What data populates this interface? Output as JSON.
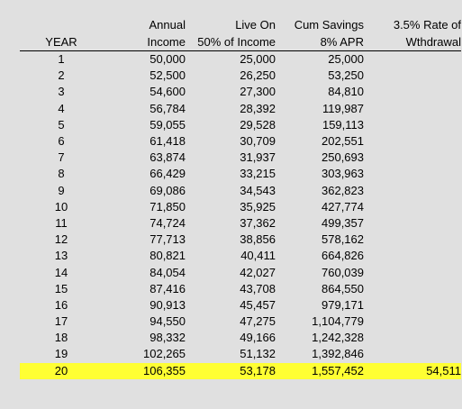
{
  "headers": {
    "year": "YEAR",
    "income_line1": "Annual",
    "income_line2": "Income",
    "live_line1": "Live On",
    "live_line2": "50% of Income",
    "cum_line1": "Cum Savings",
    "cum_line2": "8% APR",
    "wd_line1": "3.5% Rate of",
    "wd_line2": "Wthdrawal"
  },
  "rows": [
    {
      "year": "1",
      "income": "50,000",
      "live": "25,000",
      "cum": "25,000",
      "wd": ""
    },
    {
      "year": "2",
      "income": "52,500",
      "live": "26,250",
      "cum": "53,250",
      "wd": ""
    },
    {
      "year": "3",
      "income": "54,600",
      "live": "27,300",
      "cum": "84,810",
      "wd": ""
    },
    {
      "year": "4",
      "income": "56,784",
      "live": "28,392",
      "cum": "119,987",
      "wd": ""
    },
    {
      "year": "5",
      "income": "59,055",
      "live": "29,528",
      "cum": "159,113",
      "wd": ""
    },
    {
      "year": "6",
      "income": "61,418",
      "live": "30,709",
      "cum": "202,551",
      "wd": ""
    },
    {
      "year": "7",
      "income": "63,874",
      "live": "31,937",
      "cum": "250,693",
      "wd": ""
    },
    {
      "year": "8",
      "income": "66,429",
      "live": "33,215",
      "cum": "303,963",
      "wd": ""
    },
    {
      "year": "9",
      "income": "69,086",
      "live": "34,543",
      "cum": "362,823",
      "wd": ""
    },
    {
      "year": "10",
      "income": "71,850",
      "live": "35,925",
      "cum": "427,774",
      "wd": ""
    },
    {
      "year": "11",
      "income": "74,724",
      "live": "37,362",
      "cum": "499,357",
      "wd": ""
    },
    {
      "year": "12",
      "income": "77,713",
      "live": "38,856",
      "cum": "578,162",
      "wd": ""
    },
    {
      "year": "13",
      "income": "80,821",
      "live": "40,411",
      "cum": "664,826",
      "wd": ""
    },
    {
      "year": "14",
      "income": "84,054",
      "live": "42,027",
      "cum": "760,039",
      "wd": ""
    },
    {
      "year": "15",
      "income": "87,416",
      "live": "43,708",
      "cum": "864,550",
      "wd": ""
    },
    {
      "year": "16",
      "income": "90,913",
      "live": "45,457",
      "cum": "979,171",
      "wd": ""
    },
    {
      "year": "17",
      "income": "94,550",
      "live": "47,275",
      "cum": "1,104,779",
      "wd": ""
    },
    {
      "year": "18",
      "income": "98,332",
      "live": "49,166",
      "cum": "1,242,328",
      "wd": ""
    },
    {
      "year": "19",
      "income": "102,265",
      "live": "51,132",
      "cum": "1,392,846",
      "wd": ""
    },
    {
      "year": "20",
      "income": "106,355",
      "live": "53,178",
      "cum": "1,557,452",
      "wd": "54,511",
      "highlight": true
    }
  ],
  "colors": {
    "background": "#e0e0e0",
    "highlight": "#ffff33"
  }
}
